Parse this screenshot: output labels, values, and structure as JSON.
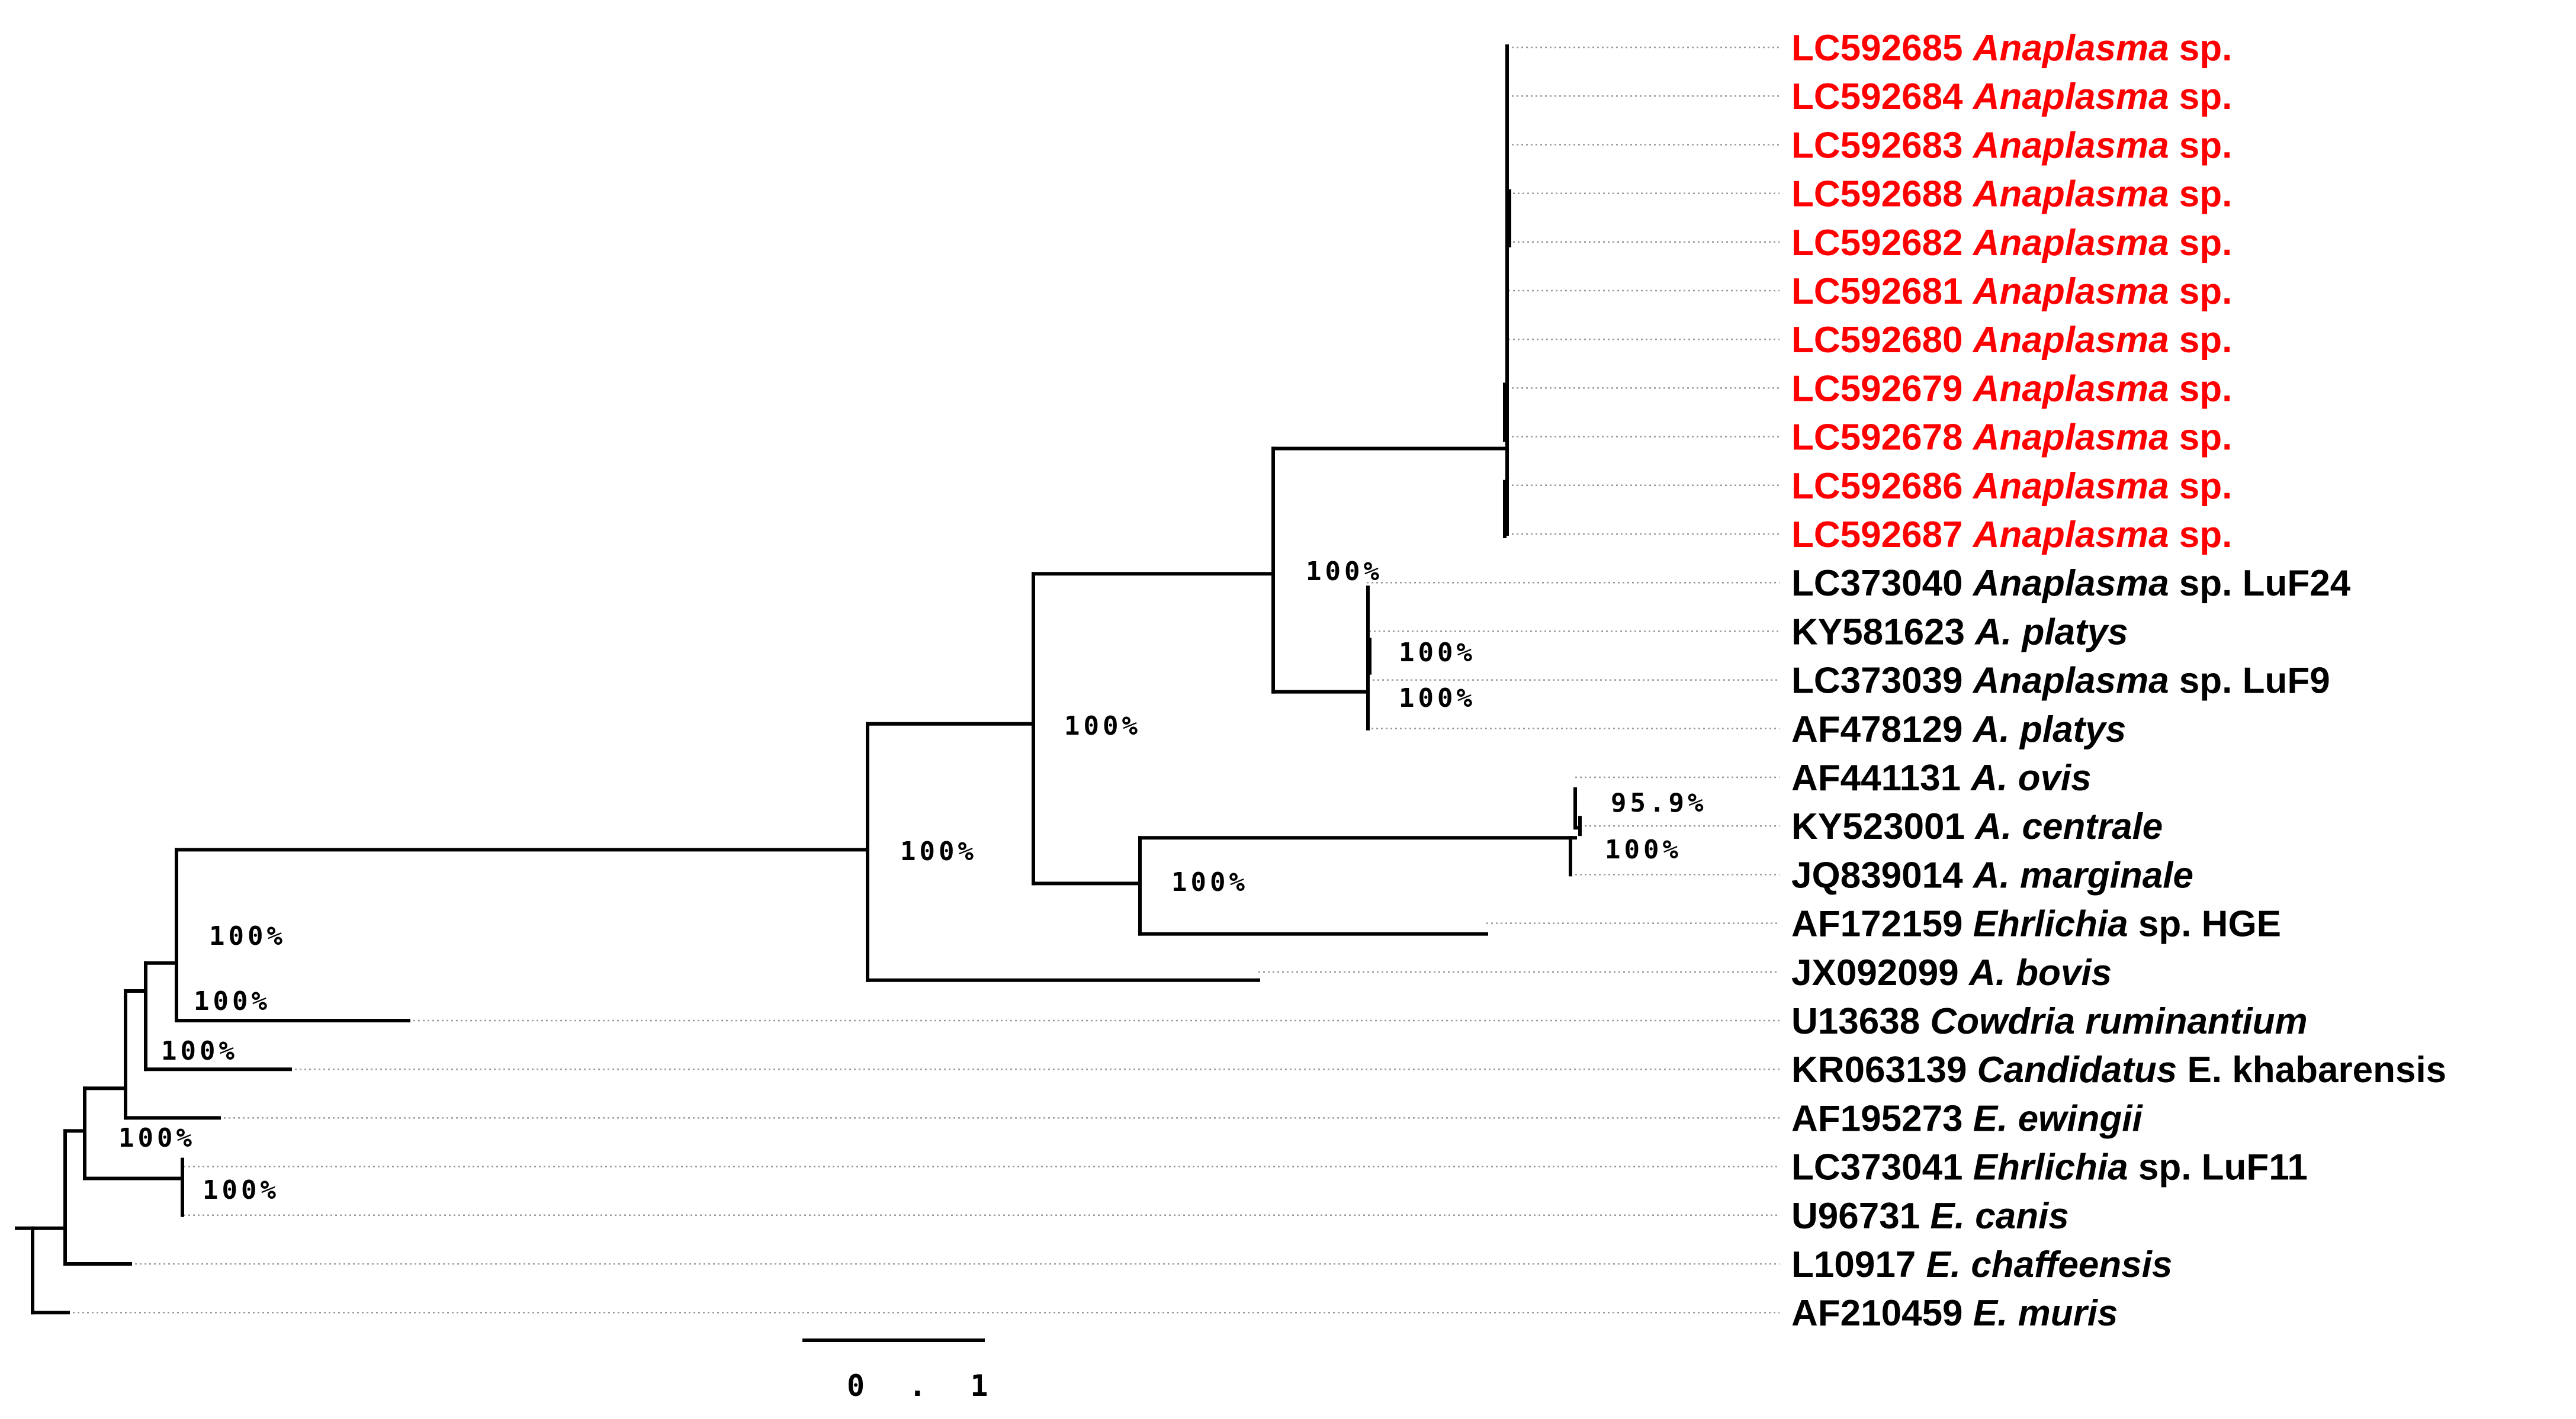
{
  "tree": {
    "taxa": [
      {
        "accession": "LC592685",
        "name_italic": "Anaplasma",
        "name_rest": " sp.",
        "color": "#ff0000"
      },
      {
        "accession": "LC592684",
        "name_italic": "Anaplasma",
        "name_rest": " sp.",
        "color": "#ff0000"
      },
      {
        "accession": "LC592683",
        "name_italic": "Anaplasma",
        "name_rest": " sp.",
        "color": "#ff0000"
      },
      {
        "accession": "LC592688",
        "name_italic": "Anaplasma",
        "name_rest": " sp.",
        "color": "#ff0000"
      },
      {
        "accession": "LC592682",
        "name_italic": "Anaplasma",
        "name_rest": " sp.",
        "color": "#ff0000"
      },
      {
        "accession": "LC592681",
        "name_italic": "Anaplasma",
        "name_rest": " sp.",
        "color": "#ff0000"
      },
      {
        "accession": "LC592680",
        "name_italic": "Anaplasma",
        "name_rest": " sp.",
        "color": "#ff0000"
      },
      {
        "accession": "LC592679",
        "name_italic": "Anaplasma",
        "name_rest": " sp.",
        "color": "#ff0000"
      },
      {
        "accession": "LC592678",
        "name_italic": "Anaplasma",
        "name_rest": " sp.",
        "color": "#ff0000"
      },
      {
        "accession": "LC592686",
        "name_italic": "Anaplasma",
        "name_rest": " sp.",
        "color": "#ff0000"
      },
      {
        "accession": "LC592687",
        "name_italic": "Anaplasma",
        "name_rest": " sp.",
        "color": "#ff0000"
      },
      {
        "accession": "LC373040",
        "name_italic": "Anaplasma",
        "name_rest": " sp. LuF24",
        "color": "#000000"
      },
      {
        "accession": "KY581623",
        "name_italic": "A. platys",
        "name_rest": "",
        "color": "#000000"
      },
      {
        "accession": "LC373039",
        "name_italic": "Anaplasma",
        "name_rest": " sp. LuF9",
        "color": "#000000"
      },
      {
        "accession": "AF478129",
        "name_italic": "A. platys",
        "name_rest": "",
        "color": "#000000"
      },
      {
        "accession": "AF441131",
        "name_italic": "A. ovis",
        "name_rest": "",
        "color": "#000000"
      },
      {
        "accession": "KY523001",
        "name_italic": "A. centrale",
        "name_rest": "",
        "color": "#000000"
      },
      {
        "accession": "JQ839014",
        "name_italic": "A. marginale",
        "name_rest": "",
        "color": "#000000"
      },
      {
        "accession": "AF172159",
        "name_italic": "Ehrlichia",
        "name_rest": " sp. HGE",
        "color": "#000000"
      },
      {
        "accession": "JX092099",
        "name_italic": "A. bovis",
        "name_rest": "",
        "color": "#000000"
      },
      {
        "accession": "U13638",
        "name_italic": "Cowdria ruminantium",
        "name_rest": "",
        "color": "#000000"
      },
      {
        "accession": "KR063139",
        "name_italic": "Candidatus",
        "name_rest": " E. khabarensis",
        "color": "#000000"
      },
      {
        "accession": "AF195273",
        "name_italic": "E. ewingii",
        "name_rest": "",
        "color": "#000000"
      },
      {
        "accession": "LC373041",
        "name_italic": "Ehrlichia",
        "name_rest": " sp. LuF11",
        "color": "#000000"
      },
      {
        "accession": "U96731",
        "name_italic": "E. canis",
        "name_rest": "",
        "color": "#000000"
      },
      {
        "accession": "L10917",
        "name_italic": "E. chaffeensis",
        "name_rest": "",
        "color": "#000000"
      },
      {
        "accession": "AF210459",
        "name_italic": "E. muris",
        "name_rest": "",
        "color": "#000000"
      }
    ],
    "bootstrap_labels": [
      "100%",
      "100%",
      "100%",
      "100%",
      "95.9%",
      "100%",
      "100%",
      "100%",
      "100%",
      "100%",
      "100%",
      "100%",
      "100%"
    ],
    "scale_bar": {
      "value": 0.1,
      "label": "0 . 1"
    }
  }
}
